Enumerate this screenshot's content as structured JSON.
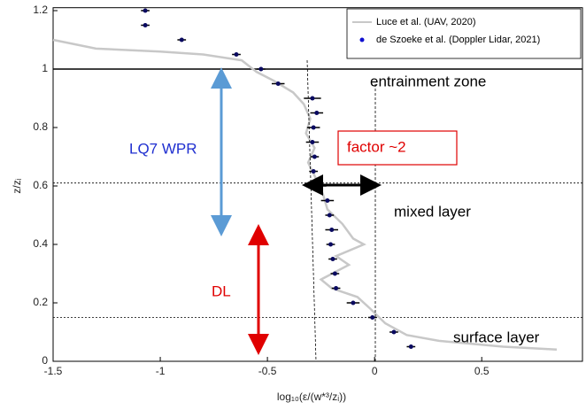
{
  "chart_data": {
    "type": "scatter",
    "x_label": "log₁₀(ε/(w*³/zᵢ))",
    "y_label": "z/zᵢ",
    "xlim": [
      -1.5,
      0.97
    ],
    "ylim": [
      0,
      1.21
    ],
    "xticks": [
      -1.5,
      -1,
      -0.5,
      0,
      0.5
    ],
    "yticks": [
      0,
      0.2,
      0.4,
      0.6,
      0.8,
      1,
      1.2
    ],
    "hlines": [
      1,
      0.61,
      0.15
    ],
    "series": [
      {
        "name": "Luce et al. (UAV, 2020)",
        "kind": "line",
        "color": "#c8c8c8",
        "x": [
          -1.5,
          -1.3,
          -1.0,
          -0.8,
          -0.62,
          -0.55,
          -0.47,
          -0.38,
          -0.33,
          -0.3,
          -0.32,
          -0.28,
          -0.31,
          -0.27,
          -0.24,
          -0.22,
          -0.15,
          -0.1,
          -0.05,
          -0.18,
          -0.12,
          -0.25,
          -0.2,
          -0.08,
          -0.02,
          0.05,
          0.15,
          0.3,
          0.6,
          0.85
        ],
        "y": [
          1.1,
          1.07,
          1.06,
          1.05,
          1.03,
          0.99,
          0.96,
          0.92,
          0.88,
          0.83,
          0.78,
          0.73,
          0.68,
          0.62,
          0.57,
          0.52,
          0.47,
          0.42,
          0.4,
          0.36,
          0.33,
          0.28,
          0.25,
          0.22,
          0.18,
          0.13,
          0.09,
          0.07,
          0.05,
          0.04
        ]
      },
      {
        "name": "de Szoeke et al. (Doppler Lidar, 2021)",
        "kind": "points",
        "color": "#0a0a60",
        "x": [
          -1.07,
          -1.07,
          -0.9,
          -0.645,
          -0.53,
          -0.45,
          -0.29,
          -0.27,
          -0.285,
          -0.29,
          -0.28,
          -0.285,
          -0.255,
          -0.22,
          -0.21,
          -0.2,
          -0.205,
          -0.195,
          -0.185,
          -0.18,
          -0.1,
          -0.01,
          0.09,
          0.17
        ],
        "y": [
          1.2,
          1.15,
          1.1,
          1.05,
          1.0,
          0.95,
          0.9,
          0.85,
          0.8,
          0.75,
          0.7,
          0.65,
          0.6,
          0.55,
          0.5,
          0.45,
          0.4,
          0.35,
          0.3,
          0.25,
          0.2,
          0.15,
          0.1,
          0.05
        ],
        "xerr": [
          0.02,
          0.02,
          0.02,
          0.02,
          0.02,
          0.03,
          0.04,
          0.03,
          0.03,
          0.03,
          0.02,
          0.02,
          0.03,
          0.03,
          0.02,
          0.03,
          0.02,
          0.02,
          0.02,
          0.02,
          0.03,
          0.02,
          0.02,
          0.02
        ]
      }
    ],
    "annotations": {
      "entrainment": "entrainment zone",
      "lq7": "LQ7 WPR",
      "factor": "factor ~2",
      "mixed": "mixed layer",
      "dl": "DL",
      "surface": "surface layer"
    }
  }
}
